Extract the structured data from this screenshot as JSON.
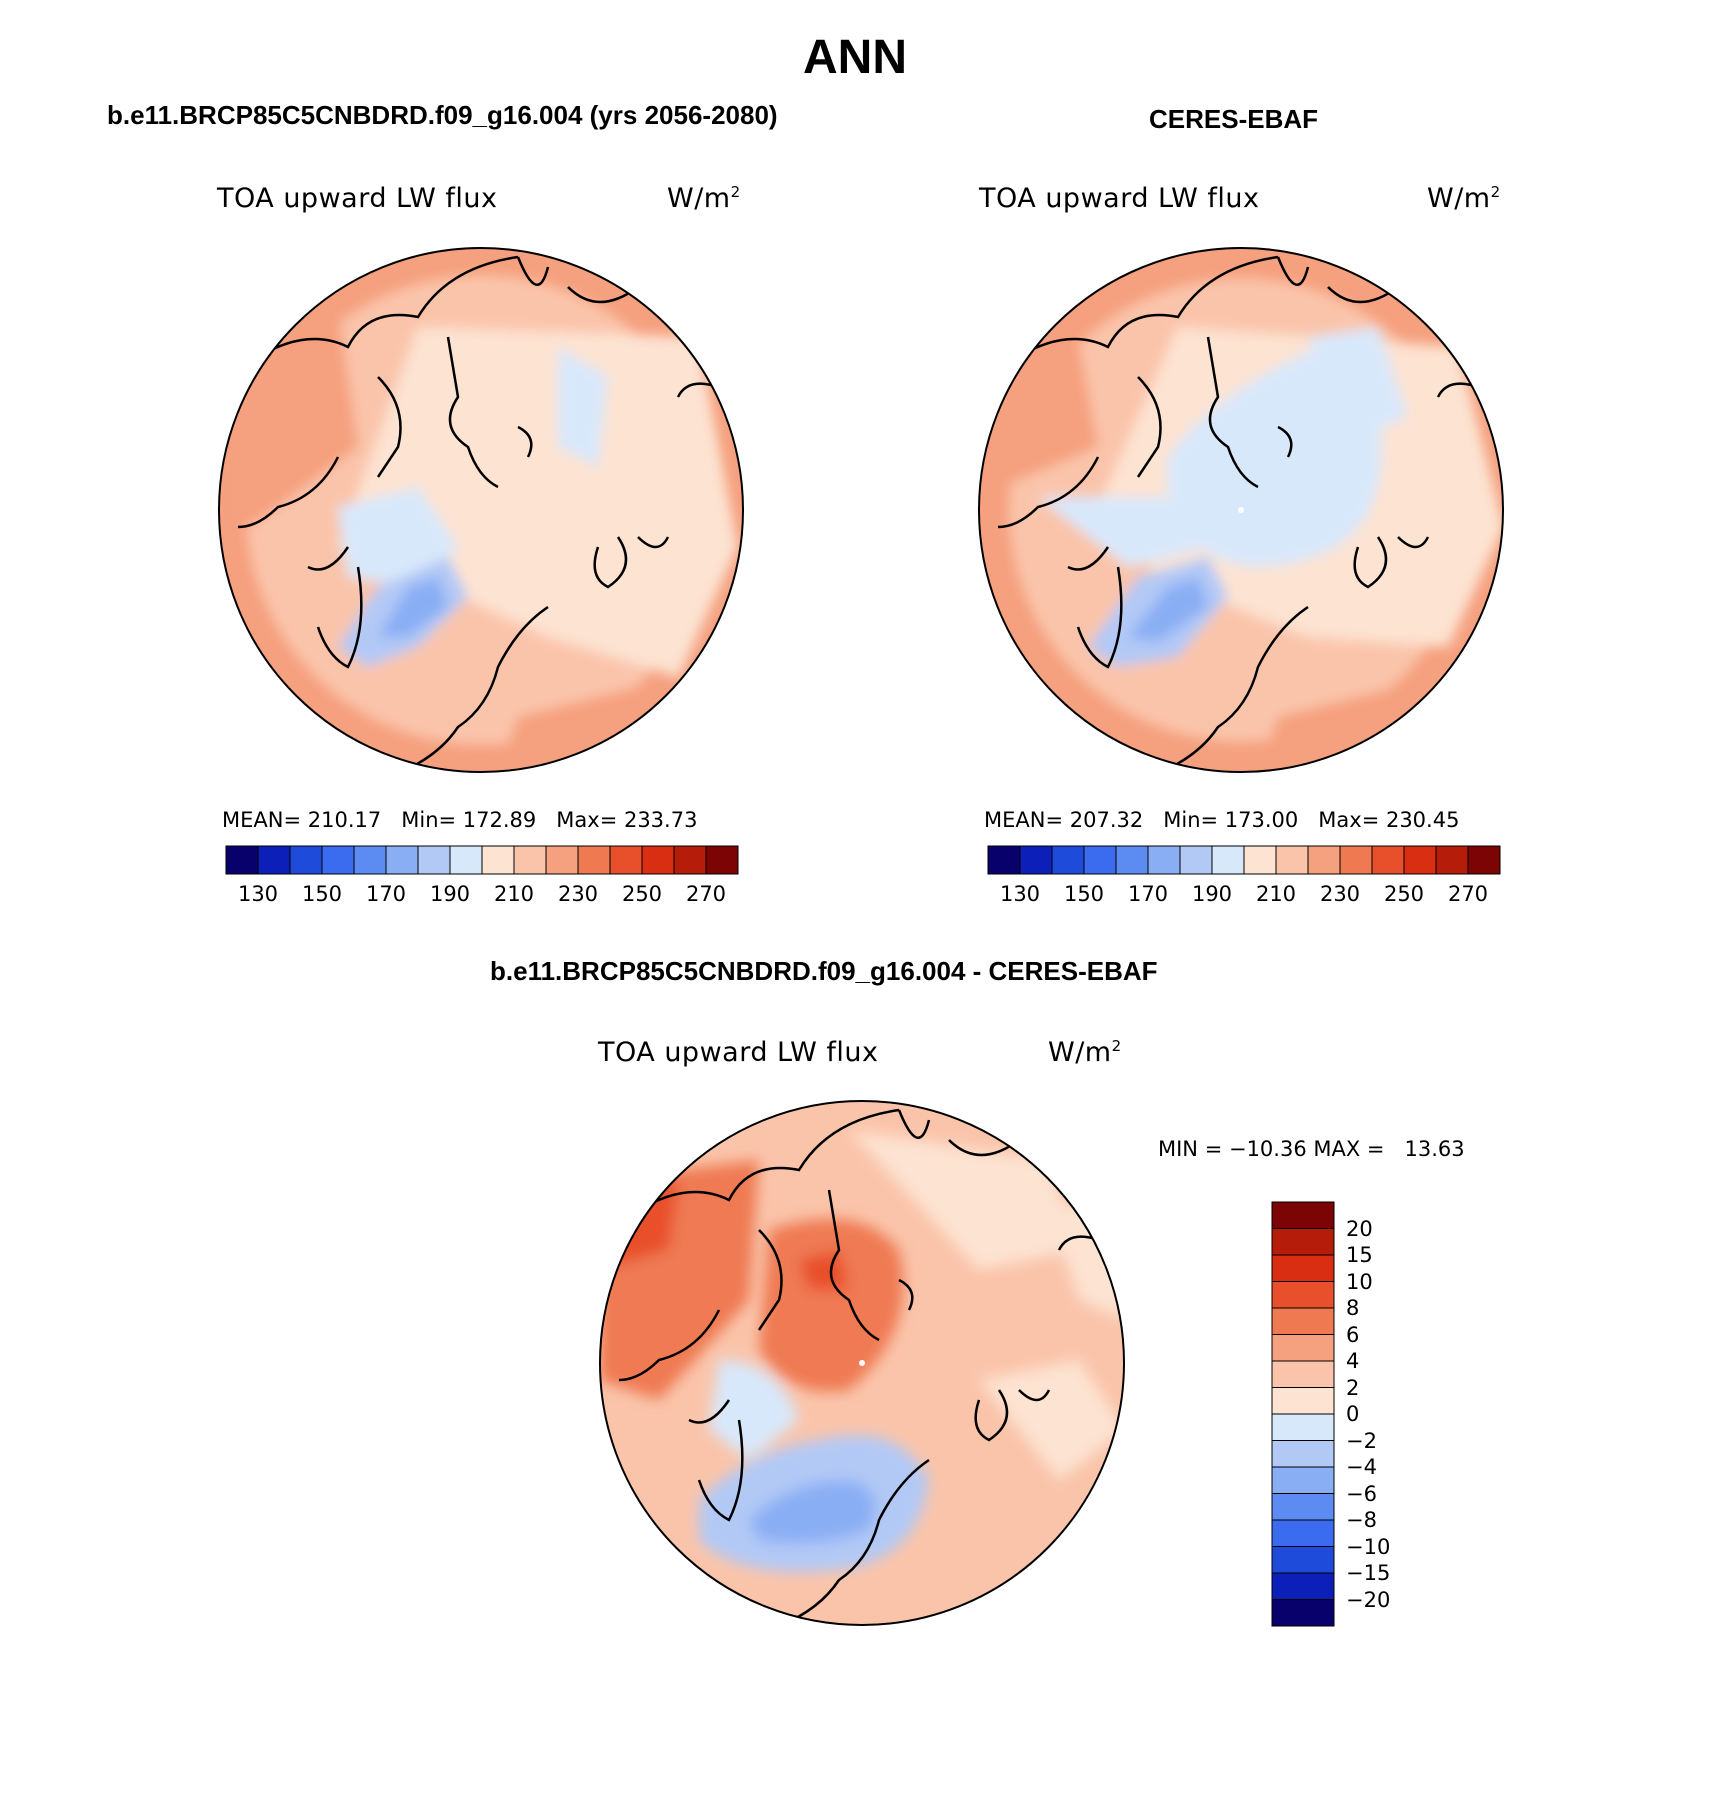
{
  "main_title": "ANN",
  "colors": [
    "#08006b",
    "#0c1fb8",
    "#1f4bdb",
    "#3b6bef",
    "#5c8cf2",
    "#8aaef4",
    "#b2c9f6",
    "#d8e8fb",
    "#fde3d2",
    "#fac4aa",
    "#f5a07e",
    "#ef7a52",
    "#e8502c",
    "#da2e13",
    "#b51c09",
    "#7d0404"
  ],
  "panels": {
    "left": {
      "heading": "b.e11.BRCP85C5CNBDRD.f09_g16.004 (yrs 2056-2080)",
      "var": "TOA upward LW flux",
      "unit": "W/m",
      "unit_exp": "2",
      "stats": "MEAN= 210.17   Min= 172.89   Max= 233.73",
      "ticks": [
        "130",
        "150",
        "170",
        "190",
        "210",
        "230",
        "250",
        "270"
      ],
      "data": {
        "mean": 210.17,
        "min": 172.89,
        "max": 233.73
      }
    },
    "right": {
      "heading": "CERES-EBAF",
      "var": "TOA upward LW flux",
      "unit": "W/m",
      "unit_exp": "2",
      "stats": "MEAN= 207.32   Min= 173.00   Max= 230.45",
      "ticks": [
        "130",
        "150",
        "170",
        "190",
        "210",
        "230",
        "250",
        "270"
      ],
      "data": {
        "mean": 207.32,
        "min": 173.0,
        "max": 230.45
      }
    },
    "diff": {
      "heading": "b.e11.BRCP85C5CNBDRD.f09_g16.004 - CERES-EBAF",
      "var": "TOA upward LW flux",
      "unit": "W/m",
      "unit_exp": "2",
      "stats": "MIN = −10.36 MAX =   13.63",
      "ticks": [
        "20",
        "15",
        "10",
        "8",
        "6",
        "4",
        "2",
        "0",
        "−2",
        "−4",
        "−6",
        "−8",
        "−10",
        "−15",
        "−20"
      ],
      "data": {
        "min": -10.36,
        "max": 13.63
      }
    }
  }
}
